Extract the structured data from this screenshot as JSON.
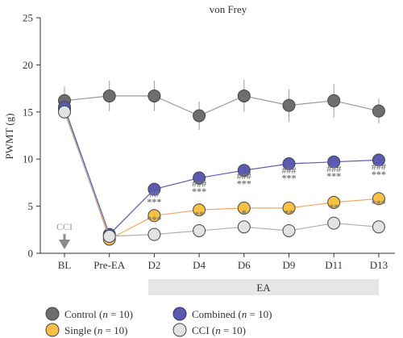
{
  "chart_data": {
    "type": "line",
    "title": "von Frey",
    "xlabel": "",
    "ylabel": "PWMT (g)",
    "ylim": [
      0,
      25
    ],
    "yticks": [
      0,
      5,
      10,
      15,
      20,
      25
    ],
    "categories": [
      "BL",
      "Pre-EA",
      "D2",
      "D4",
      "D6",
      "D9",
      "D11",
      "D13"
    ],
    "grid": false,
    "series": [
      {
        "key": "control",
        "name": "Control",
        "n_label": "n",
        "n_value": "= 10)",
        "color": "#6e6e6e",
        "line_color": "#9a9a9a",
        "values": [
          16.2,
          16.7,
          16.7,
          14.6,
          16.7,
          15.7,
          16.2,
          15.1
        ],
        "errors": [
          1.5,
          1.6,
          1.6,
          1.5,
          1.7,
          1.7,
          1.8,
          1.3
        ]
      },
      {
        "key": "combined",
        "name": "Combined",
        "n_label": "n",
        "n_value": "= 10)",
        "color": "#5a5ab0",
        "line_color": "#5a5ab0",
        "values": [
          15.5,
          2.0,
          6.8,
          8.0,
          8.8,
          9.5,
          9.7,
          9.9
        ],
        "errors": [
          0,
          0,
          0,
          0,
          0,
          0,
          0,
          0
        ]
      },
      {
        "key": "single",
        "name": "Single",
        "n_label": "n",
        "n_value": "= 10)",
        "color": "#f7c244",
        "line_color": "#f2a65a",
        "values": [
          15.3,
          1.5,
          4.0,
          4.6,
          4.8,
          4.8,
          5.4,
          5.8
        ],
        "errors": [
          0,
          0,
          0,
          0,
          0,
          0,
          0,
          0
        ]
      },
      {
        "key": "cci",
        "name": "CCI",
        "n_label": "n",
        "n_value": "= 10)",
        "color": "#e3e3e3",
        "line_color": "#b0b0b0",
        "values": [
          15.0,
          1.8,
          2.0,
          2.4,
          2.8,
          2.4,
          3.2,
          2.8
        ],
        "errors": [
          0,
          0,
          0,
          0,
          0,
          0,
          0,
          0
        ]
      }
    ],
    "annotations": [
      {
        "cat": 2,
        "y": 5.5,
        "text": "***"
      },
      {
        "cat": 2,
        "y": 6.3,
        "text": "##"
      },
      {
        "cat": 2,
        "y": 3.6,
        "text": "***"
      },
      {
        "cat": 3,
        "y": 6.6,
        "text": "***"
      },
      {
        "cat": 3,
        "y": 7.4,
        "text": "###"
      },
      {
        "cat": 3,
        "y": 4.1,
        "text": "**"
      },
      {
        "cat": 4,
        "y": 7.4,
        "text": "***"
      },
      {
        "cat": 4,
        "y": 8.2,
        "text": "###"
      },
      {
        "cat": 4,
        "y": 4.3,
        "text": "*"
      },
      {
        "cat": 5,
        "y": 8.0,
        "text": "***"
      },
      {
        "cat": 5,
        "y": 8.8,
        "text": "###"
      },
      {
        "cat": 5,
        "y": 4.3,
        "text": "**"
      },
      {
        "cat": 6,
        "y": 8.2,
        "text": "***"
      },
      {
        "cat": 6,
        "y": 9.0,
        "text": "###"
      },
      {
        "cat": 6,
        "y": 4.9,
        "text": "**"
      },
      {
        "cat": 7,
        "y": 8.4,
        "text": "***"
      },
      {
        "cat": 7,
        "y": 9.2,
        "text": "###"
      },
      {
        "cat": 7,
        "y": 5.3,
        "text": "***"
      }
    ],
    "cci_marker": {
      "label": "CCI",
      "cat": 0
    },
    "ea_bar": {
      "label": "EA",
      "from_cat": 2,
      "to_cat": 7
    },
    "legend_placement": "bottom"
  }
}
